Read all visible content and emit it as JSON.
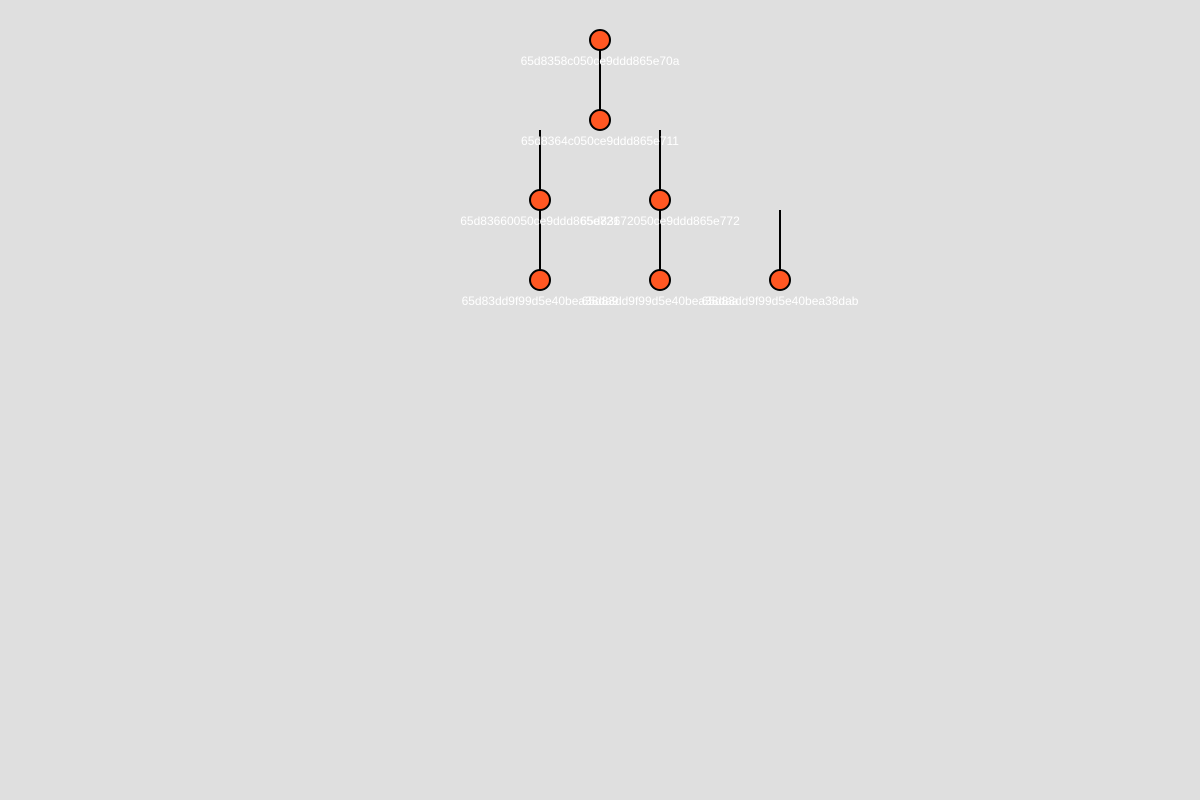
{
  "colors": {
    "background": "#dfdfdf",
    "node_fill": "#ff5722",
    "node_stroke": "#000000",
    "edge": "#000000",
    "label": "#ffffff"
  },
  "tree": {
    "nodes": [
      {
        "id": "65d8358c050ce9ddd865e70a",
        "label": "65d8358c050ce9ddd865e70a"
      },
      {
        "id": "65d8364c050ce9ddd865e711",
        "label": "65d8364c050ce9ddd865e711"
      },
      {
        "id": "65d83660050ce9ddd865e721",
        "label": "65d83660050ce9ddd865e721"
      },
      {
        "id": "65d83672050ce9ddd865e772",
        "label": "65d83672050ce9ddd865e772"
      },
      {
        "id": "65d83dd9f99d5e40bea38da9",
        "label": "65d83dd9f99d5e40bea38da9"
      },
      {
        "id": "65d83dd9f99d5e40bea38daa",
        "label": "65d83dd9f99d5e40bea38daa"
      },
      {
        "id": "65d83dd9f99d5e40bea38dab",
        "label": "65d83dd9f99d5e40bea38dab"
      }
    ],
    "edges": [
      {
        "from": "65d8358c050ce9ddd865e70a",
        "to": "65d8364c050ce9ddd865e711"
      },
      {
        "from": "65d8364c050ce9ddd865e711",
        "to": "65d83660050ce9ddd865e721"
      },
      {
        "from": "65d8364c050ce9ddd865e711",
        "to": "65d83672050ce9ddd865e772"
      },
      {
        "from": "65d83660050ce9ddd865e721",
        "to": "65d83dd9f99d5e40bea38da9"
      },
      {
        "from": "65d83672050ce9ddd865e772",
        "to": "65d83dd9f99d5e40bea38daa"
      },
      {
        "from": "65d83672050ce9ddd865e772",
        "to": "65d83dd9f99d5e40bea38dab"
      }
    ]
  }
}
